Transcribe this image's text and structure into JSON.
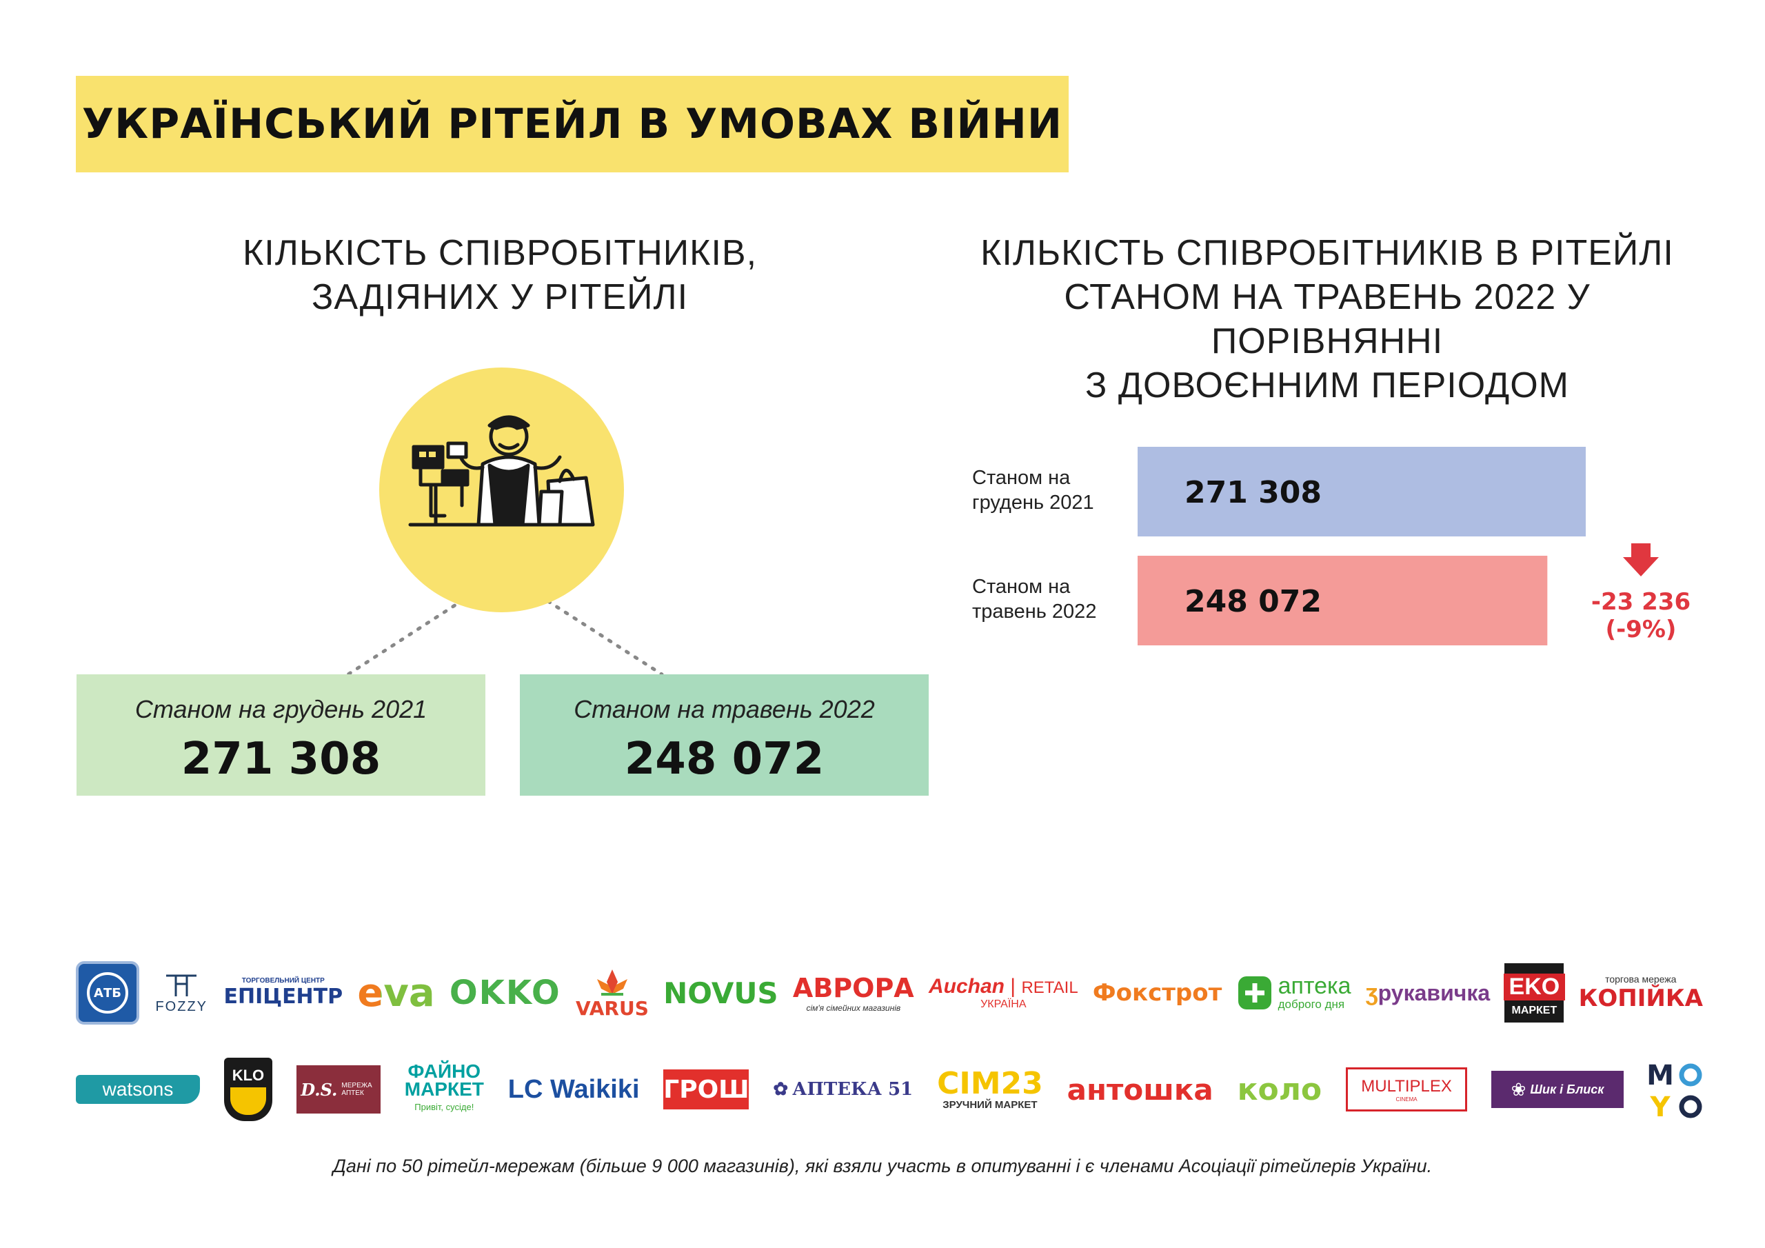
{
  "header": {
    "title": "УКРАЇНСЬКИЙ РІТЕЙЛ В УМОВАХ ВІЙНИ"
  },
  "left_section": {
    "title_lines": [
      "КІЛЬКІСТЬ СПІВРОБІТНИКІВ,",
      "ЗАДІЯНИХ У РІТЕЙЛІ"
    ],
    "boxes": [
      {
        "caption": "Станом на грудень 2021",
        "value": "271 308"
      },
      {
        "caption": "Станом на травень 2022",
        "value": "248 072"
      }
    ]
  },
  "right_section": {
    "title_lines": [
      "КІЛЬКІСТЬ СПІВРОБІТНИКІВ В РІТЕЙЛІ",
      "СТАНОМ НА ТРАВЕНЬ 2022 У ПОРІВНЯННІ",
      "З ДОВОЄННИМ ПЕРІОДОМ"
    ]
  },
  "chart_data": {
    "type": "bar",
    "orientation": "horizontal",
    "categories": [
      [
        "Станом на",
        "грудень 2021"
      ],
      [
        "Станом на",
        "травень 2022"
      ]
    ],
    "values": [
      271308,
      248072
    ],
    "value_labels": [
      "271 308",
      "248 072"
    ],
    "colors": [
      "#aebde2",
      "#f49b98"
    ],
    "delta": {
      "value": "-23 236",
      "percent": "(-9%)",
      "color": "#e0373f"
    }
  },
  "logos": {
    "row1": [
      {
        "icon": "atb-logo",
        "text": "АТБ"
      },
      {
        "icon": "fozzy-logo",
        "text": "FOZZY"
      },
      {
        "icon": "epicentr-logo",
        "text": "ЕПІЦЕНТР",
        "sub": "ТОРГОВЕЛЬНИЙ ЦЕНТР"
      },
      {
        "icon": "eva-logo",
        "text": "eva"
      },
      {
        "icon": "okko-logo",
        "text": "OKKO"
      },
      {
        "icon": "varus-logo",
        "text": "VARUS"
      },
      {
        "icon": "novus-logo",
        "text": "NOVUS"
      },
      {
        "icon": "avrora-logo",
        "text": "АВРОРА",
        "sub": "сім'я сімейних магазинів"
      },
      {
        "icon": "auchan-logo",
        "text": "Auchan",
        "text2": "RETAIL",
        "sub": "УКРАЇНА"
      },
      {
        "icon": "foxtrot-logo",
        "text": "Фокстрот"
      },
      {
        "icon": "apteka-dd-logo",
        "text": "аптека",
        "sub": "доброго дня"
      },
      {
        "icon": "rukavychka-logo",
        "text": "рукавичка"
      },
      {
        "icon": "eko-market-logo",
        "text": "EKO",
        "sub": "МАРКЕТ"
      },
      {
        "icon": "kopiyka-logo",
        "text": "КОПІЙКА",
        "sub": "торгова мережа"
      }
    ],
    "row2": [
      {
        "icon": "watsons-logo",
        "text": "watsons"
      },
      {
        "icon": "klo-logo",
        "text": "KLO"
      },
      {
        "icon": "ds-logo",
        "text": "D.S.",
        "sub": "МЕРЕЖА АПТЕК"
      },
      {
        "icon": "fayno-market-logo",
        "text": "ФАЙНО",
        "text2": "МАРКЕТ",
        "sub": "Привіт, сусіде!"
      },
      {
        "icon": "lcwaikiki-logo",
        "text": "LC Waikiki"
      },
      {
        "icon": "grosh-logo",
        "text": "ГРОШ"
      },
      {
        "icon": "apteka51-logo",
        "text": "АПТЕКА 51"
      },
      {
        "icon": "sim23-logo",
        "text": "СІМ23",
        "sub": "ЗРУЧНИЙ МАРКЕТ"
      },
      {
        "icon": "antoshka-logo",
        "text": "антошка"
      },
      {
        "icon": "kolo-logo",
        "text": "коло"
      },
      {
        "icon": "multiplex-logo",
        "text": "MULTIPLEX",
        "sub": "CINEMA"
      },
      {
        "icon": "shyk-i-blysk-logo",
        "text": "Шик і Блиск"
      },
      {
        "icon": "moyo-logo",
        "text": "MOYO"
      }
    ]
  },
  "footnote": "Дані по 50 рітейл-мережам (більше 9 000 магазинів), які взяли участь в опитуванні і є членами Асоціації рітейлерів України."
}
